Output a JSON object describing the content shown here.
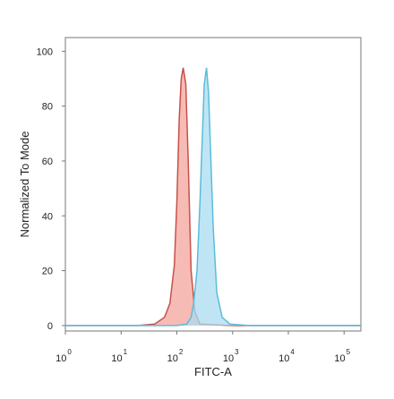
{
  "chart_data": {
    "type": "area",
    "xlabel": "FITC-A",
    "ylabel": "Normalized To Mode",
    "x_scale": "log",
    "xlim": [
      1,
      200000
    ],
    "ylim": [
      -2,
      105
    ],
    "grid": false,
    "y_ticks": [
      0,
      20,
      40,
      60,
      80,
      100
    ],
    "x_ticks": [
      {
        "value": 1,
        "base": "10",
        "exp": "0"
      },
      {
        "value": 10,
        "base": "10",
        "exp": "1"
      },
      {
        "value": 100,
        "base": "10",
        "exp": "2"
      },
      {
        "value": 1000,
        "base": "10",
        "exp": "3"
      },
      {
        "value": 10000,
        "base": "10",
        "exp": "4"
      },
      {
        "value": 100000,
        "base": "10",
        "exp": "5"
      }
    ],
    "series": [
      {
        "color_fill": "#f4a49c",
        "color_line": "#c8504a",
        "x": [
          1,
          20,
          40,
          60,
          75,
          90,
          100,
          110,
          120,
          130,
          145,
          160,
          180,
          210,
          260,
          1000,
          200000
        ],
        "y": [
          0,
          0,
          0.5,
          3,
          8,
          22,
          45,
          75,
          90,
          94,
          88,
          60,
          20,
          5,
          0.5,
          0,
          0
        ]
      },
      {
        "color_fill": "#a9dcf2",
        "color_line": "#5bbcda",
        "x": [
          1,
          100,
          150,
          180,
          200,
          230,
          260,
          290,
          310,
          340,
          370,
          400,
          450,
          520,
          650,
          900,
          2000,
          200000
        ],
        "y": [
          0,
          0,
          0.5,
          3,
          8,
          20,
          45,
          72,
          88,
          94,
          85,
          65,
          35,
          12,
          3,
          0.5,
          0,
          0
        ]
      }
    ]
  }
}
